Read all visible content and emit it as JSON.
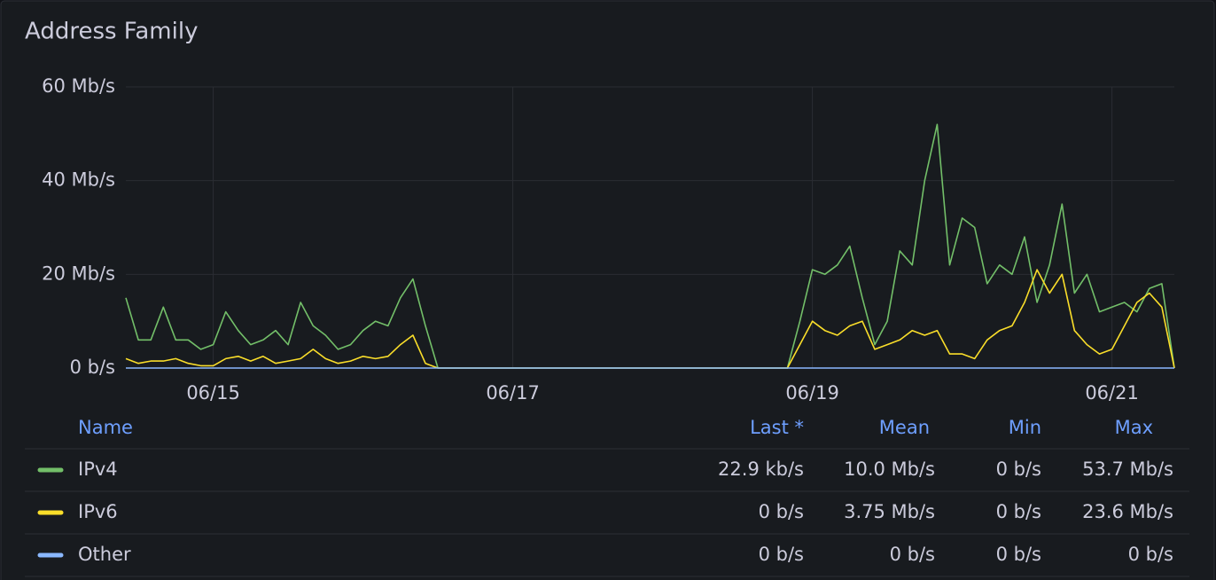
{
  "chart_data": {
    "type": "line",
    "title": "Address Family",
    "categories": [
      null,
      null,
      null,
      null,
      null,
      null,
      null,
      "06/15",
      null,
      null,
      null,
      null,
      null,
      null,
      null,
      null,
      null,
      null,
      null,
      null,
      null,
      null,
      null,
      null,
      null,
      null,
      null,
      null,
      null,
      null,
      null,
      "06/17",
      null,
      null,
      null,
      null,
      null,
      null,
      null,
      null,
      null,
      null,
      null,
      null,
      null,
      null,
      null,
      null,
      null,
      null,
      null,
      null,
      null,
      null,
      null,
      "06/19",
      null,
      null,
      null,
      null,
      null,
      null,
      null,
      null,
      null,
      null,
      null,
      null,
      null,
      null,
      null,
      null,
      null,
      null,
      null,
      null,
      null,
      null,
      null,
      "06/21",
      null,
      null,
      null,
      null,
      null
    ],
    "ylim": [
      0,
      60
    ],
    "yticks": [
      {
        "value": 0,
        "label": "0 b/s"
      },
      {
        "value": 20,
        "label": "20 Mb/s"
      },
      {
        "value": 40,
        "label": "40 Mb/s"
      },
      {
        "value": 60,
        "label": "60 Mb/s"
      }
    ],
    "grid": true,
    "series": [
      {
        "name": "IPv4",
        "color": "#73bf69",
        "values": [
          15,
          6,
          6,
          13,
          6,
          6,
          4,
          5,
          12,
          8,
          5,
          6,
          8,
          5,
          14,
          9,
          7,
          4,
          5,
          8,
          10,
          9,
          15,
          19,
          9,
          0,
          0,
          0,
          0,
          0,
          0,
          0,
          0,
          0,
          0,
          0,
          0,
          0,
          0,
          0,
          0,
          0,
          0,
          0,
          0,
          0,
          0,
          0,
          0,
          0,
          0,
          0,
          0,
          0,
          10,
          21,
          20,
          22,
          26,
          15,
          5,
          10,
          25,
          22,
          40,
          52,
          22,
          32,
          30,
          18,
          22,
          20,
          28,
          14,
          22,
          35,
          16,
          20,
          12,
          13,
          14,
          12,
          17,
          18,
          0.0229
        ],
        "stats": [
          "22.9 kb/s",
          "10.0 Mb/s",
          "0 b/s",
          "53.7 Mb/s"
        ]
      },
      {
        "name": "IPv6",
        "color": "#fade2a",
        "values": [
          2,
          1,
          1.5,
          1.5,
          2,
          1,
          0.5,
          0.5,
          2,
          2.5,
          1.5,
          2.5,
          1,
          1.5,
          2,
          4,
          2,
          1,
          1.5,
          2.5,
          2,
          2.5,
          5,
          7,
          1,
          0,
          0,
          0,
          0,
          0,
          0,
          0,
          0,
          0,
          0,
          0,
          0,
          0,
          0,
          0,
          0,
          0,
          0,
          0,
          0,
          0,
          0,
          0,
          0,
          0,
          0,
          0,
          0,
          0,
          5,
          10,
          8,
          7,
          9,
          10,
          4,
          5,
          6,
          8,
          7,
          8,
          3,
          3,
          2,
          6,
          8,
          9,
          14,
          21,
          16,
          20,
          8,
          5,
          3,
          4,
          9,
          14,
          16,
          13,
          0
        ],
        "stats": [
          "0 b/s",
          "3.75 Mb/s",
          "0 b/s",
          "23.6 Mb/s"
        ]
      },
      {
        "name": "Other",
        "color": "#8ab8ff",
        "values": [
          0,
          0,
          0,
          0,
          0,
          0,
          0,
          0,
          0,
          0,
          0,
          0,
          0,
          0,
          0,
          0,
          0,
          0,
          0,
          0,
          0,
          0,
          0,
          0,
          0,
          0,
          0,
          0,
          0,
          0,
          0,
          0,
          0,
          0,
          0,
          0,
          0,
          0,
          0,
          0,
          0,
          0,
          0,
          0,
          0,
          0,
          0,
          0,
          0,
          0,
          0,
          0,
          0,
          0,
          0,
          0,
          0,
          0,
          0,
          0,
          0,
          0,
          0,
          0,
          0,
          0,
          0,
          0,
          0,
          0,
          0,
          0,
          0,
          0,
          0,
          0,
          0,
          0,
          0,
          0,
          0,
          0,
          0,
          0,
          0
        ],
        "stats": [
          "0 b/s",
          "0 b/s",
          "0 b/s",
          "0 b/s"
        ]
      }
    ],
    "legend_columns": [
      "Name",
      "Last *",
      "Mean",
      "Min",
      "Max"
    ]
  }
}
